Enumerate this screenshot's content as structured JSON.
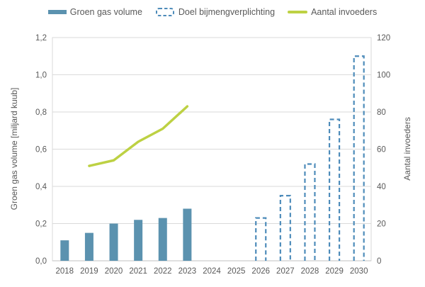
{
  "chart_data": {
    "type": "combo",
    "categories": [
      "2018",
      "2019",
      "2020",
      "2021",
      "2022",
      "2023",
      "2024",
      "2025",
      "2026",
      "2027",
      "2028",
      "2029",
      "2030"
    ],
    "series": [
      {
        "name": "Groen gas volume",
        "type": "bar",
        "style": "solid",
        "axis": "left",
        "color": "#5b92af",
        "values": [
          0.11,
          0.15,
          0.2,
          0.22,
          0.23,
          0.28,
          null,
          null,
          null,
          null,
          null,
          null,
          null
        ]
      },
      {
        "name": "Doel bijmengverplichting",
        "type": "bar",
        "style": "dashed-outline",
        "axis": "left",
        "color": "#4e8cba",
        "values": [
          null,
          null,
          null,
          null,
          null,
          null,
          null,
          null,
          0.23,
          0.35,
          0.52,
          0.76,
          1.1
        ]
      },
      {
        "name": "Aantal invoeders",
        "type": "line",
        "axis": "right",
        "color": "#bdd143",
        "values": [
          null,
          51,
          54,
          64,
          71,
          83,
          null,
          null,
          null,
          null,
          null,
          null,
          null
        ]
      }
    ],
    "left_axis": {
      "label": "Groen gas volume [miljard kuub]",
      "range": [
        0,
        1.2
      ],
      "tick_labels": [
        "0,0",
        "0,2",
        "0,4",
        "0,6",
        "0,8",
        "1,0",
        "1,2"
      ]
    },
    "right_axis": {
      "label": "Aantal invoeders",
      "range": [
        0,
        120
      ],
      "tick_labels": [
        "0",
        "20",
        "40",
        "60",
        "80",
        "100",
        "120"
      ]
    },
    "grid": true,
    "legend_position": "top",
    "text_color": "#595959",
    "grid_color": "#dadada"
  }
}
